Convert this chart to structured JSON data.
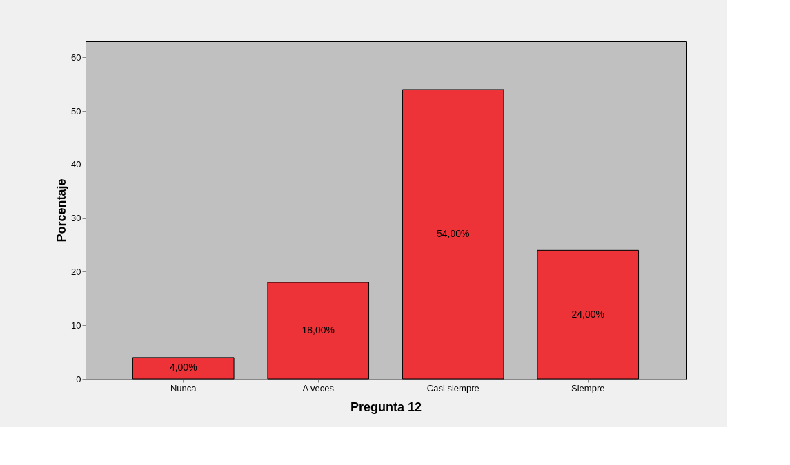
{
  "chart_data": {
    "type": "bar",
    "xlabel": "Pregunta 12",
    "ylabel": "Porcentaje",
    "categories": [
      "Nunca",
      "A veces",
      "Casi siempre",
      "Siempre"
    ],
    "values": [
      4,
      18,
      54,
      24
    ],
    "color": "#ee3338",
    "value_labels": [
      "4,00%",
      "18,00%",
      "54,00%",
      "24,00%"
    ],
    "ylim": [
      0,
      63
    ],
    "yticks": [
      0,
      10,
      20,
      30,
      40,
      50,
      60
    ],
    "grid": false
  }
}
